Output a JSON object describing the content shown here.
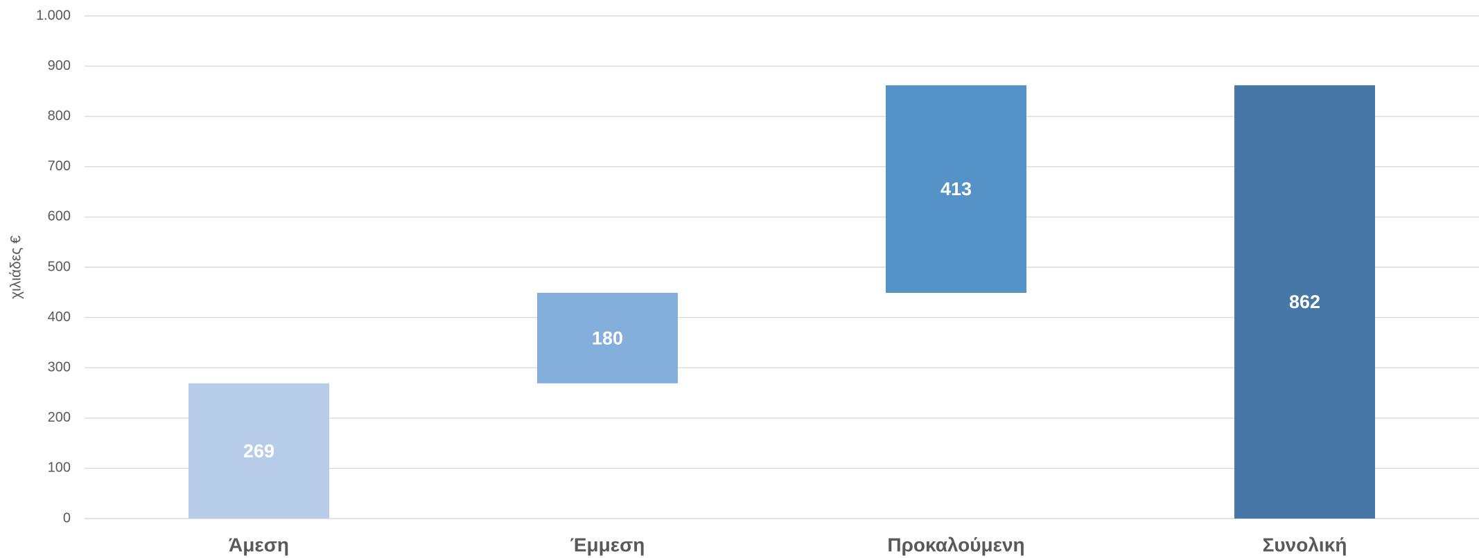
{
  "chart_data": {
    "type": "waterfall",
    "y_label": "χιλιάδες €",
    "categories": [
      "Άμεση",
      "Έμμεση",
      "Προκαλούμενη",
      "Συνολική"
    ],
    "values": [
      269,
      180,
      413,
      862
    ],
    "totals": [
      false,
      false,
      false,
      true
    ],
    "colors": [
      "#b7cce9",
      "#84aedb",
      "#5592c8",
      "#4677a6"
    ],
    "ylim": [
      0,
      1000
    ],
    "yticks": [
      0,
      100,
      200,
      300,
      400,
      500,
      600,
      700,
      800,
      900,
      {
        "value": 1000,
        "label": "1.000"
      }
    ],
    "grid": true
  }
}
